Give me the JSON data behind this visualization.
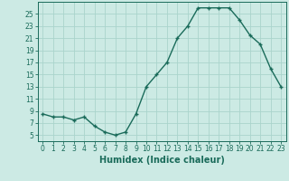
{
  "x": [
    0,
    1,
    2,
    3,
    4,
    5,
    6,
    7,
    8,
    9,
    10,
    11,
    12,
    13,
    14,
    15,
    16,
    17,
    18,
    19,
    20,
    21,
    22,
    23
  ],
  "y": [
    8.5,
    8.0,
    8.0,
    7.5,
    8.0,
    6.5,
    5.5,
    5.0,
    5.5,
    8.5,
    13.0,
    15.0,
    17.0,
    21.0,
    23.0,
    26.0,
    26.0,
    26.0,
    26.0,
    24.0,
    21.5,
    20.0,
    16.0,
    13.0
  ],
  "line_color": "#1a6b5a",
  "marker": "+",
  "marker_size": 3.5,
  "line_width": 1.0,
  "bg_color": "#cceae4",
  "grid_color": "#aad4cc",
  "xlabel": "Humidex (Indice chaleur)",
  "xlim": [
    -0.5,
    23.5
  ],
  "ylim": [
    4,
    27
  ],
  "yticks": [
    5,
    7,
    9,
    11,
    13,
    15,
    17,
    19,
    21,
    23,
    25
  ],
  "xticks": [
    0,
    1,
    2,
    3,
    4,
    5,
    6,
    7,
    8,
    9,
    10,
    11,
    12,
    13,
    14,
    15,
    16,
    17,
    18,
    19,
    20,
    21,
    22,
    23
  ],
  "tick_fontsize": 5.5,
  "label_fontsize": 7.0,
  "marker_edge_width": 1.0
}
